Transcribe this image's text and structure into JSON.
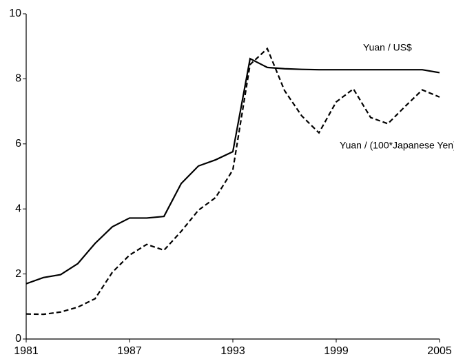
{
  "chart_data": {
    "type": "line",
    "x": [
      1981,
      1982,
      1983,
      1984,
      1985,
      1986,
      1987,
      1988,
      1989,
      1990,
      1991,
      1992,
      1993,
      1994,
      1995,
      1996,
      1997,
      1998,
      1999,
      2000,
      2001,
      2002,
      2003,
      2004,
      2005
    ],
    "series": [
      {
        "name": "Yuan / US$",
        "color": "#000000",
        "dash": false,
        "values": [
          1.7,
          1.89,
          1.98,
          2.32,
          2.94,
          3.45,
          3.72,
          3.72,
          3.77,
          4.78,
          5.32,
          5.51,
          5.76,
          8.62,
          8.35,
          8.31,
          8.29,
          8.28,
          8.28,
          8.28,
          8.28,
          8.28,
          8.28,
          8.28,
          8.19
        ]
      },
      {
        "name": "Yuan / (100*Japanese Yen)",
        "color": "#000000",
        "dash": true,
        "values": [
          0.77,
          0.76,
          0.83,
          0.98,
          1.24,
          2.05,
          2.58,
          2.91,
          2.73,
          3.31,
          3.96,
          4.35,
          5.2,
          8.44,
          8.93,
          7.64,
          6.86,
          6.34,
          7.29,
          7.69,
          6.81,
          6.62,
          7.15,
          7.66,
          7.44
        ]
      }
    ],
    "xlim": [
      1981,
      2005
    ],
    "xticks": [
      1981,
      1987,
      1993,
      1999,
      2005
    ],
    "ylim": [
      0,
      10
    ],
    "yticks": [
      0,
      2,
      4,
      6,
      8,
      10
    ]
  }
}
